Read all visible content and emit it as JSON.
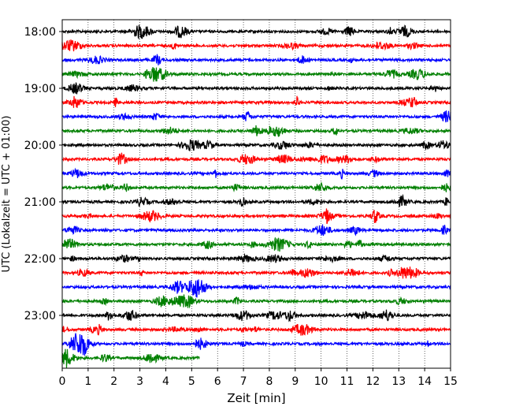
{
  "chart_data": {
    "type": "line",
    "title": "",
    "xlabel": "Zeit  [min]",
    "ylabel": "UTC (Lokalzeit = UTC + 01:00)",
    "xlim": [
      0,
      15
    ],
    "x_ticks": [
      0,
      1,
      2,
      3,
      4,
      5,
      6,
      7,
      8,
      9,
      10,
      11,
      12,
      13,
      14,
      15
    ],
    "y_tick_labels": [
      "18:00",
      "19:00",
      "20:00",
      "21:00",
      "22:00",
      "23:00"
    ],
    "grid_x": true,
    "grid_y": false,
    "colors_cycle": [
      "#000000",
      "#ff0000",
      "#0000ff",
      "#008000"
    ],
    "traces": [
      {
        "start": "18:00",
        "color": "#000000",
        "end_min": 15
      },
      {
        "start": "18:15",
        "color": "#ff0000",
        "end_min": 15
      },
      {
        "start": "18:30",
        "color": "#0000ff",
        "end_min": 15
      },
      {
        "start": "18:45",
        "color": "#008000",
        "end_min": 15
      },
      {
        "start": "19:00",
        "color": "#000000",
        "end_min": 15
      },
      {
        "start": "19:15",
        "color": "#ff0000",
        "end_min": 15
      },
      {
        "start": "19:30",
        "color": "#0000ff",
        "end_min": 15
      },
      {
        "start": "19:45",
        "color": "#008000",
        "end_min": 15
      },
      {
        "start": "20:00",
        "color": "#000000",
        "end_min": 15
      },
      {
        "start": "20:15",
        "color": "#ff0000",
        "end_min": 15
      },
      {
        "start": "20:30",
        "color": "#0000ff",
        "end_min": 15
      },
      {
        "start": "20:45",
        "color": "#008000",
        "end_min": 15
      },
      {
        "start": "21:00",
        "color": "#000000",
        "end_min": 15
      },
      {
        "start": "21:15",
        "color": "#ff0000",
        "end_min": 15
      },
      {
        "start": "21:30",
        "color": "#0000ff",
        "end_min": 15
      },
      {
        "start": "21:45",
        "color": "#008000",
        "end_min": 15
      },
      {
        "start": "22:00",
        "color": "#000000",
        "end_min": 15
      },
      {
        "start": "22:15",
        "color": "#ff0000",
        "end_min": 15
      },
      {
        "start": "22:30",
        "color": "#0000ff",
        "end_min": 15
      },
      {
        "start": "22:45",
        "color": "#008000",
        "end_min": 15
      },
      {
        "start": "23:00",
        "color": "#000000",
        "end_min": 15
      },
      {
        "start": "23:15",
        "color": "#ff0000",
        "end_min": 15
      },
      {
        "start": "23:30",
        "color": "#0000ff",
        "end_min": 15
      },
      {
        "start": "23:45",
        "color": "#008000",
        "end_min": 5.3
      }
    ]
  }
}
